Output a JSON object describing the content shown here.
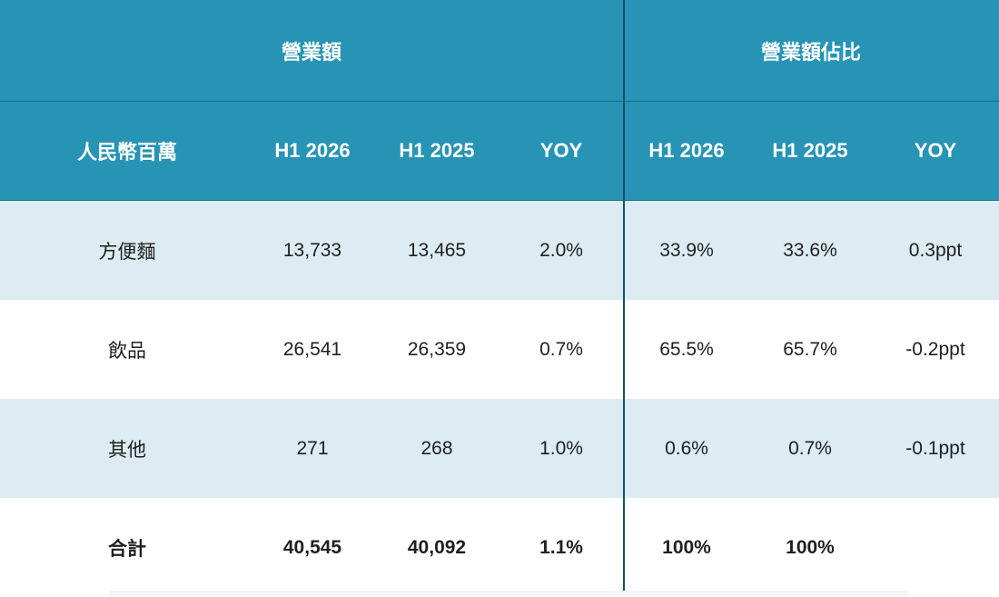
{
  "header": {
    "group_revenue": "營業額",
    "group_share": "營業額佔比",
    "col_label": "人民幣百萬",
    "rev_h1_2026": "H1 2026",
    "rev_h1_2025": "H1 2025",
    "rev_yoy": "YOY",
    "share_h1_2026": "H1 2026",
    "share_h1_2025": "H1 2025",
    "share_yoy": "YOY"
  },
  "rows": [
    {
      "label": "方便麵",
      "rev_2026": "13,733",
      "rev_2025": "13,465",
      "rev_yoy": "2.0%",
      "share_2026": "33.9%",
      "share_2025": "33.6%",
      "share_yoy": "0.3ppt"
    },
    {
      "label": "飲品",
      "rev_2026": "26,541",
      "rev_2025": "26,359",
      "rev_yoy": "0.7%",
      "share_2026": "65.5%",
      "share_2025": "65.7%",
      "share_yoy": "-0.2ppt"
    },
    {
      "label": "其他",
      "rev_2026": "271",
      "rev_2025": "268",
      "rev_yoy": "1.0%",
      "share_2026": "0.6%",
      "share_2025": "0.7%",
      "share_yoy": "-0.1ppt"
    },
    {
      "label": "合計",
      "rev_2026": "40,545",
      "rev_2025": "40,092",
      "rev_yoy": "1.1%",
      "share_2026": "100%",
      "share_2025": "100%",
      "share_yoy": ""
    }
  ],
  "colors": {
    "header_bg": "#2794b5",
    "shaded_row": "#dcecf2",
    "divider": "#1a4f66"
  }
}
